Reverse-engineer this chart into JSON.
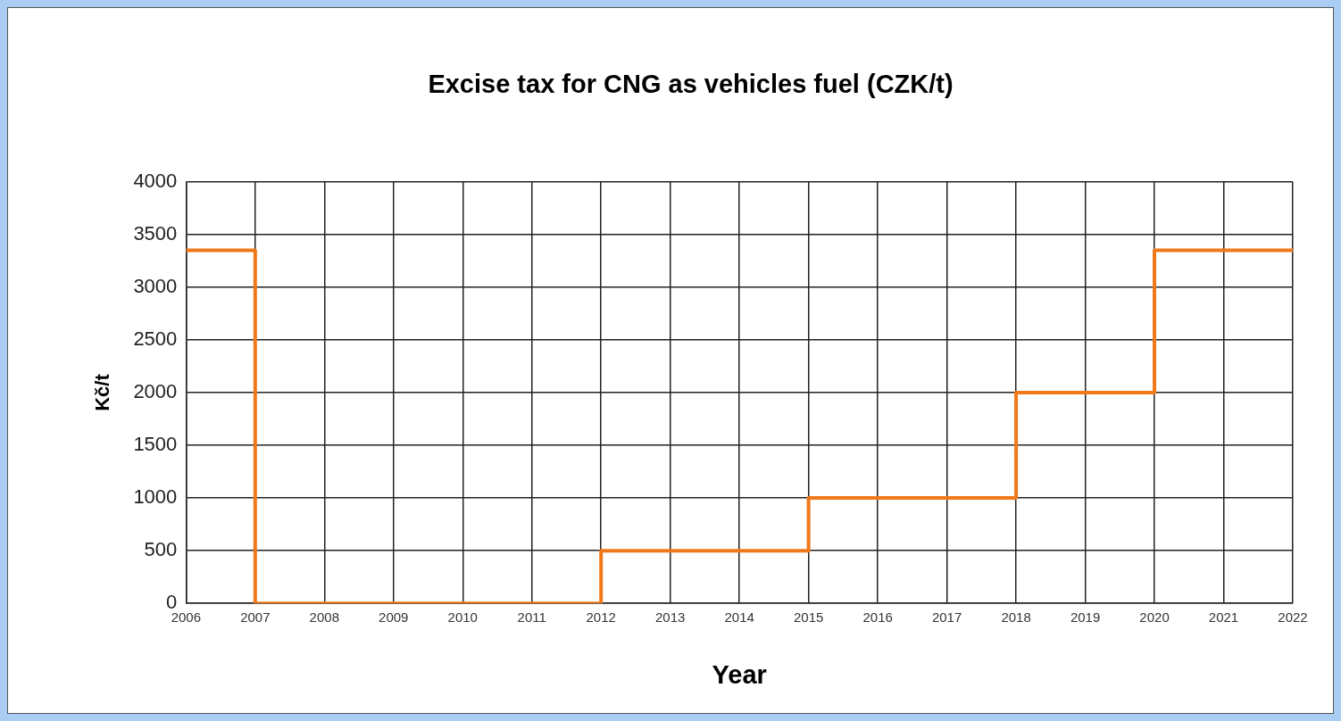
{
  "chart_data": {
    "type": "step",
    "title": "Excise tax for CNG as vehicles fuel (CZK/t)",
    "xlabel": "Year",
    "ylabel": "Kč/t",
    "x": [
      2006,
      2007,
      2012,
      2015,
      2018,
      2020,
      2022
    ],
    "series": [
      {
        "color": "#f07818",
        "values": [
          3350,
          0,
          500,
          1000,
          2000,
          3350,
          3350
        ]
      }
    ],
    "xlim": [
      2006,
      2022
    ],
    "xticks": [
      2006,
      2007,
      2008,
      2009,
      2010,
      2011,
      2012,
      2013,
      2014,
      2015,
      2016,
      2017,
      2018,
      2019,
      2020,
      2021,
      2022
    ],
    "ylim": [
      0,
      4000
    ],
    "yticks": [
      0,
      500,
      1000,
      1500,
      2000,
      2500,
      3000,
      3500,
      4000
    ],
    "grid": true,
    "legend": false,
    "marker": "none",
    "line_style": "solid"
  }
}
